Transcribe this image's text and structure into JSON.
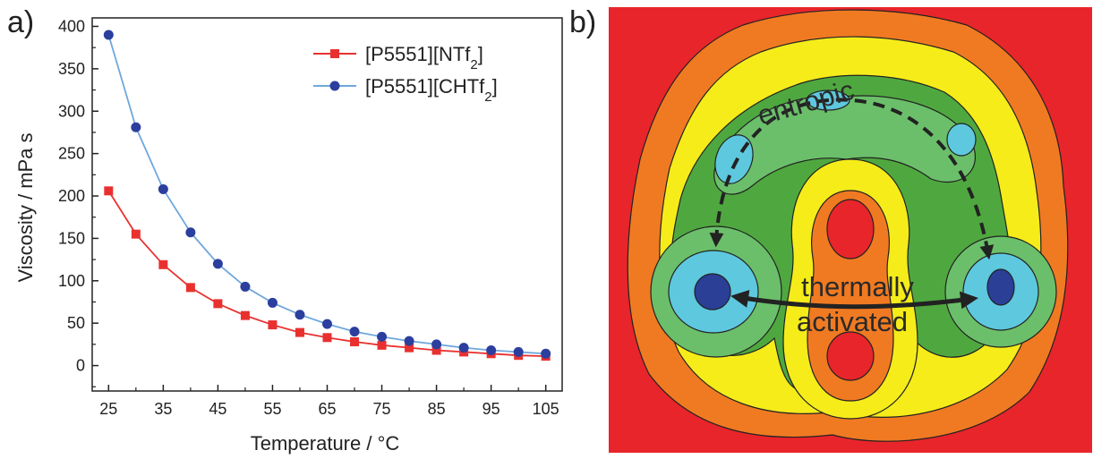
{
  "panels": {
    "a_label": "a)",
    "b_label": "b)"
  },
  "chart_data": {
    "type": "line",
    "title": "",
    "xlabel": "Temperature / °C",
    "ylabel": "Viscosity / mPa s",
    "xlim": [
      22,
      108
    ],
    "ylim": [
      -30,
      410
    ],
    "xticks": [
      25,
      35,
      45,
      55,
      65,
      75,
      85,
      95,
      105
    ],
    "yticks": [
      0,
      50,
      100,
      150,
      200,
      250,
      300,
      350,
      400
    ],
    "legend_position": "top-right",
    "x": [
      25,
      30,
      35,
      40,
      45,
      50,
      55,
      60,
      65,
      70,
      75,
      80,
      85,
      90,
      95,
      100,
      105
    ],
    "series": [
      {
        "name_main": "[P5551][NTf",
        "name_sub": "2",
        "name_end": "]",
        "color": "#e8312f",
        "marker": "square",
        "values": [
          206,
          155,
          119,
          92,
          73,
          59,
          48,
          39,
          33,
          28,
          24,
          21,
          18,
          16,
          14,
          12,
          11
        ]
      },
      {
        "name_main": "[P5551][CHTf",
        "name_sub": "2",
        "name_end": "]",
        "color": "#2c3f9e",
        "line_color": "#6fa8dc",
        "marker": "circle",
        "values": [
          390,
          281,
          208,
          157,
          120,
          93,
          74,
          60,
          49,
          40,
          34,
          29,
          25,
          21,
          18,
          16,
          14
        ]
      }
    ]
  },
  "energy_map": {
    "label_entropic": "entropic",
    "label_thermal_line1": "thermally",
    "label_thermal_line2": "activated",
    "colors": {
      "red": "#e8252a",
      "orange": "#f07a22",
      "yellow": "#f5ec1a",
      "dark_green": "#4fa83f",
      "light_green": "#6bbf6a",
      "cyan": "#5ec8de",
      "navy": "#2b3f97"
    }
  }
}
